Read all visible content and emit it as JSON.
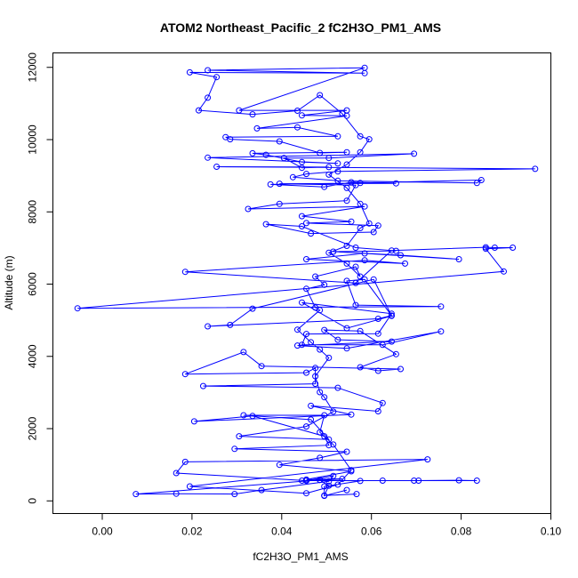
{
  "chart_data": {
    "type": "line",
    "title": "ATOM2 Northeast_Pacific_2 fC2H3O_PM1_AMS",
    "xlabel": "fC2H3O_PM1_AMS",
    "ylabel": "Altitude (m)",
    "xlim": [
      -0.011,
      0.1
    ],
    "ylim": [
      -350,
      12400
    ],
    "xticks": [
      0.0,
      0.02,
      0.04,
      0.06,
      0.08,
      0.1
    ],
    "xtick_labels": [
      "0.00",
      "0.02",
      "0.04",
      "0.06",
      "0.08",
      "0.10"
    ],
    "yticks": [
      0,
      2000,
      4000,
      6000,
      8000,
      10000,
      12000
    ],
    "ytick_labels": [
      "0",
      "2000",
      "4000",
      "6000",
      "8000",
      "10000",
      "12000"
    ],
    "grid": false,
    "colors": {
      "series": "#0000ff"
    },
    "series": [
      {
        "markers": "open-circle",
        "points": [
          [
            0.0567,
            190
          ],
          [
            0.0495,
            150
          ],
          [
            0.0505,
            420
          ],
          [
            0.0485,
            580
          ],
          [
            0.0075,
            190
          ],
          [
            0.0165,
            200
          ],
          [
            0.0295,
            190
          ],
          [
            0.0355,
            300
          ],
          [
            0.0505,
            540
          ],
          [
            0.0515,
            690
          ],
          [
            0.0455,
            560
          ],
          [
            0.0165,
            770
          ],
          [
            0.0185,
            1080
          ],
          [
            0.0725,
            1150
          ],
          [
            0.0195,
            400
          ],
          [
            0.0455,
            210
          ],
          [
            0.0525,
            450
          ],
          [
            0.0555,
            850
          ],
          [
            0.0515,
            1560
          ],
          [
            0.0485,
            1900
          ],
          [
            0.0495,
            2370
          ],
          [
            0.0315,
            2370
          ],
          [
            0.0465,
            2250
          ],
          [
            0.0505,
            1700
          ],
          [
            0.0305,
            1790
          ],
          [
            0.0455,
            2060
          ],
          [
            0.0515,
            2470
          ],
          [
            0.0495,
            2870
          ],
          [
            0.0485,
            3010
          ],
          [
            0.0475,
            3450
          ],
          [
            0.0505,
            3960
          ],
          [
            0.0485,
            4190
          ],
          [
            0.0465,
            4390
          ],
          [
            0.0435,
            4740
          ],
          [
            0.0485,
            5280
          ],
          [
            0.0475,
            5350
          ],
          [
            0.0455,
            5870
          ],
          [
            0.0495,
            5980
          ],
          [
            0.0475,
            6210
          ],
          [
            0.0565,
            6480
          ],
          [
            0.0575,
            6210
          ],
          [
            0.0545,
            6570
          ],
          [
            0.0505,
            6870
          ],
          [
            0.0545,
            7060
          ],
          [
            0.0575,
            7550
          ],
          [
            0.0595,
            7680
          ],
          [
            0.0575,
            8220
          ],
          [
            0.0545,
            8660
          ],
          [
            0.0505,
            9030
          ],
          [
            0.0545,
            9310
          ],
          [
            0.0575,
            9650
          ],
          [
            0.0595,
            10010
          ],
          [
            0.0575,
            10090
          ],
          [
            0.0535,
            10720
          ],
          [
            0.0485,
            11230
          ],
          [
            0.0435,
            10800
          ],
          [
            0.0335,
            10700
          ],
          [
            0.0215,
            10810
          ],
          [
            0.0235,
            11160
          ],
          [
            0.0255,
            11730
          ],
          [
            0.0195,
            11860
          ],
          [
            0.0585,
            11840
          ],
          [
            0.0235,
            11920
          ],
          [
            0.0585,
            11990
          ],
          [
            0.0305,
            10810
          ],
          [
            0.0545,
            10810
          ],
          [
            0.0445,
            10670
          ],
          [
            0.0545,
            10660
          ],
          [
            0.0345,
            10310
          ],
          [
            0.0435,
            10340
          ],
          [
            0.0525,
            10090
          ],
          [
            0.0275,
            10070
          ],
          [
            0.0285,
            10010
          ],
          [
            0.0395,
            9950
          ],
          [
            0.0485,
            9630
          ],
          [
            0.0545,
            9650
          ],
          [
            0.0335,
            9620
          ],
          [
            0.0365,
            9580
          ],
          [
            0.0445,
            9380
          ],
          [
            0.0525,
            9340
          ],
          [
            0.0235,
            9500
          ],
          [
            0.0695,
            9610
          ],
          [
            0.0505,
            9490
          ],
          [
            0.0405,
            9490
          ],
          [
            0.0445,
            9220
          ],
          [
            0.0505,
            9240
          ],
          [
            0.0255,
            9250
          ],
          [
            0.0965,
            9190
          ],
          [
            0.0525,
            9120
          ],
          [
            0.0455,
            9050
          ],
          [
            0.0425,
            8960
          ],
          [
            0.0525,
            8860
          ],
          [
            0.0835,
            8800
          ],
          [
            0.0845,
            8880
          ],
          [
            0.0575,
            8800
          ],
          [
            0.0375,
            8760
          ],
          [
            0.0495,
            8690
          ],
          [
            0.0555,
            8820
          ],
          [
            0.0655,
            8790
          ],
          [
            0.0395,
            8780
          ],
          [
            0.0565,
            8740
          ],
          [
            0.0545,
            8310
          ],
          [
            0.0395,
            8220
          ],
          [
            0.0325,
            8080
          ],
          [
            0.0585,
            8150
          ],
          [
            0.0445,
            7880
          ],
          [
            0.0555,
            7730
          ],
          [
            0.0455,
            7690
          ],
          [
            0.0615,
            7620
          ],
          [
            0.0605,
            7440
          ],
          [
            0.0465,
            7400
          ],
          [
            0.0365,
            7660
          ],
          [
            0.0445,
            7600
          ],
          [
            0.0565,
            7010
          ],
          [
            0.0655,
            6920
          ],
          [
            0.0515,
            6900
          ],
          [
            0.0665,
            6800
          ],
          [
            0.0795,
            6690
          ],
          [
            0.0585,
            6850
          ],
          [
            0.0455,
            6690
          ],
          [
            0.0675,
            6570
          ],
          [
            0.0585,
            6660
          ],
          [
            0.0185,
            6340
          ],
          [
            0.0565,
            6030
          ],
          [
            0.0645,
            6930
          ],
          [
            0.0855,
            7020
          ],
          [
            0.0875,
            7010
          ],
          [
            0.0915,
            7010
          ],
          [
            0.0855,
            6980
          ],
          [
            0.0895,
            6350
          ],
          [
            -0.0055,
            5330
          ],
          [
            0.0755,
            5380
          ],
          [
            0.0565,
            5420
          ],
          [
            0.0545,
            6090
          ],
          [
            0.0585,
            6130
          ],
          [
            0.0645,
            5130
          ],
          [
            0.0615,
            5040
          ],
          [
            0.0235,
            4830
          ],
          [
            0.0285,
            4870
          ],
          [
            0.0335,
            5320
          ],
          [
            0.0605,
            6130
          ],
          [
            0.0645,
            5120
          ],
          [
            0.0545,
            4780
          ],
          [
            0.0445,
            5490
          ],
          [
            0.0645,
            5180
          ],
          [
            0.0615,
            4630
          ],
          [
            0.0455,
            4620
          ],
          [
            0.0445,
            4320
          ],
          [
            0.0625,
            4320
          ],
          [
            0.0755,
            4690
          ],
          [
            0.0545,
            4220
          ],
          [
            0.0435,
            4300
          ],
          [
            0.0645,
            4410
          ],
          [
            0.0525,
            4460
          ],
          [
            0.0495,
            4730
          ],
          [
            0.0575,
            4700
          ],
          [
            0.0655,
            4060
          ],
          [
            0.0575,
            3700
          ],
          [
            0.0615,
            3600
          ],
          [
            0.0665,
            3650
          ],
          [
            0.0355,
            3730
          ],
          [
            0.0315,
            4120
          ],
          [
            0.0185,
            3510
          ],
          [
            0.0455,
            3550
          ],
          [
            0.0475,
            3680
          ],
          [
            0.0475,
            3240
          ],
          [
            0.0225,
            3180
          ],
          [
            0.0525,
            3130
          ],
          [
            0.0625,
            2710
          ],
          [
            0.0615,
            2480
          ],
          [
            0.0465,
            2630
          ],
          [
            0.0555,
            2390
          ],
          [
            0.0205,
            2200
          ],
          [
            0.0335,
            2350
          ],
          [
            0.0495,
            1790
          ],
          [
            0.0505,
            1540
          ],
          [
            0.0295,
            1440
          ],
          [
            0.0545,
            1360
          ],
          [
            0.0485,
            1190
          ],
          [
            0.0395,
            1000
          ],
          [
            0.0555,
            820
          ],
          [
            0.0455,
            590
          ],
          [
            0.0535,
            610
          ],
          [
            0.0455,
            560
          ],
          [
            0.0625,
            560
          ],
          [
            0.0705,
            560
          ],
          [
            0.0695,
            560
          ],
          [
            0.0795,
            570
          ],
          [
            0.0835,
            560
          ],
          [
            0.0445,
            560
          ],
          [
            0.0485,
            580
          ],
          [
            0.0575,
            550
          ],
          [
            0.0495,
            400
          ],
          [
            0.0495,
            140
          ],
          [
            0.0545,
            300
          ]
        ]
      }
    ]
  }
}
